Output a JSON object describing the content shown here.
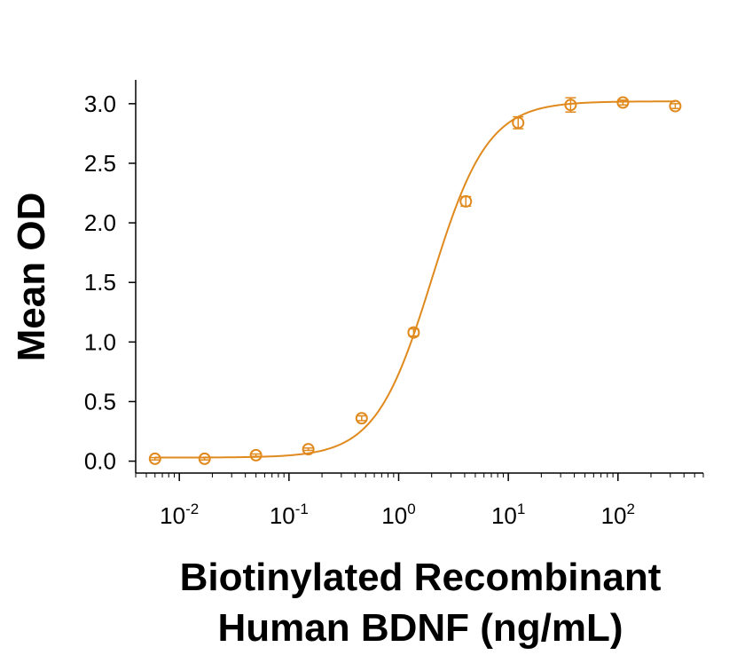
{
  "chart_data": {
    "type": "scatter",
    "title": "",
    "xlabel_lines": [
      "Biotinylated Recombinant",
      "Human BDNF (ng/mL)"
    ],
    "ylabel": "Mean OD",
    "x_scale": "log",
    "xlim": [
      0.004,
      600
    ],
    "ylim": [
      -0.1,
      3.2
    ],
    "x_ticks": [
      {
        "value": 0.01,
        "base": "10",
        "exp": "-2"
      },
      {
        "value": 0.1,
        "base": "10",
        "exp": "-1"
      },
      {
        "value": 1,
        "base": "10",
        "exp": "0"
      },
      {
        "value": 10,
        "base": "10",
        "exp": "1"
      },
      {
        "value": 100,
        "base": "10",
        "exp": "2"
      }
    ],
    "y_ticks": [
      {
        "value": 0.0,
        "label": "0.0"
      },
      {
        "value": 0.5,
        "label": "0.5"
      },
      {
        "value": 1.0,
        "label": "1.0"
      },
      {
        "value": 1.5,
        "label": "1.5"
      },
      {
        "value": 2.0,
        "label": "2.0"
      },
      {
        "value": 2.5,
        "label": "2.5"
      },
      {
        "value": 3.0,
        "label": "3.0"
      }
    ],
    "grid": false,
    "legend": "none",
    "color": "#E08A1E",
    "series": [
      {
        "x": [
          0.006,
          0.017,
          0.05,
          0.15,
          0.46,
          1.37,
          4.1,
          12.3,
          37,
          111,
          333
        ],
        "y": [
          0.02,
          0.02,
          0.05,
          0.1,
          0.36,
          1.08,
          2.18,
          2.84,
          2.99,
          3.01,
          2.98
        ],
        "err": [
          0.01,
          0.01,
          0.01,
          0.01,
          0.02,
          0.03,
          0.04,
          0.05,
          0.06,
          0.02,
          0.02
        ]
      }
    ],
    "fit": {
      "bottom": 0.03,
      "top": 3.02,
      "ec50": 2.0,
      "hill": 1.7
    }
  }
}
